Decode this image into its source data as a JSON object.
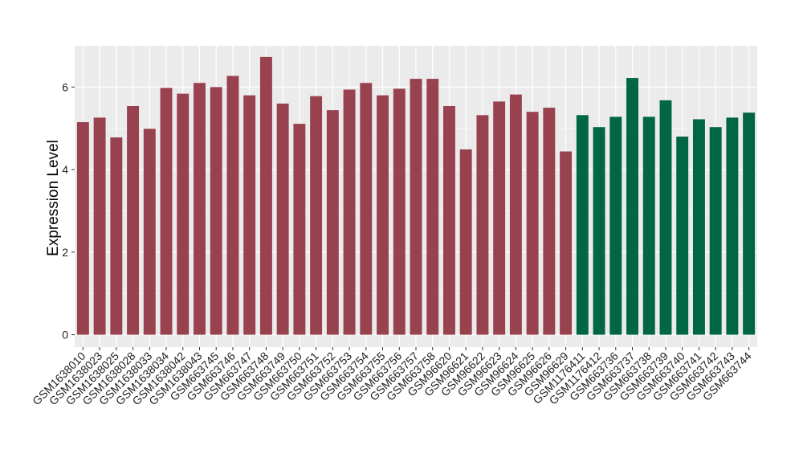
{
  "chart_data": {
    "type": "bar",
    "title": "",
    "xlabel": "",
    "ylabel": "Expression Level",
    "ylim": [
      -0.3,
      7.0
    ],
    "yticks": [
      0,
      2,
      4,
      6
    ],
    "grid": true,
    "legend": "none",
    "colors": {
      "group1": "#99424f",
      "group2": "#006644",
      "panel": "#ebebeb",
      "grid": "#ffffff"
    },
    "categories": [
      "GSM1638010",
      "GSM1638023",
      "GSM1638025",
      "GSM1638028",
      "GSM1638033",
      "GSM1638034",
      "GSM1638042",
      "GSM1638043",
      "GSM663745",
      "GSM663746",
      "GSM663747",
      "GSM663748",
      "GSM663749",
      "GSM663750",
      "GSM663751",
      "GSM663752",
      "GSM663753",
      "GSM663754",
      "GSM663755",
      "GSM663756",
      "GSM663757",
      "GSM663758",
      "GSM96620",
      "GSM96621",
      "GSM96622",
      "GSM96623",
      "GSM96624",
      "GSM96625",
      "GSM96626",
      "GSM96629",
      "GSM1176411",
      "GSM1176412",
      "GSM663736",
      "GSM663737",
      "GSM663738",
      "GSM663739",
      "GSM663740",
      "GSM663741",
      "GSM663742",
      "GSM663743",
      "GSM663744"
    ],
    "values": [
      5.15,
      5.26,
      4.78,
      5.54,
      4.99,
      5.98,
      5.84,
      6.1,
      6.0,
      6.27,
      5.8,
      6.73,
      5.6,
      5.11,
      5.78,
      5.44,
      5.94,
      6.1,
      5.8,
      5.96,
      6.2,
      6.2,
      5.54,
      4.49,
      5.32,
      5.65,
      5.82,
      5.4,
      5.5,
      4.44,
      5.32,
      5.03,
      5.28,
      6.22,
      5.28,
      5.68,
      4.8,
      5.22,
      5.03,
      5.26,
      5.38
    ],
    "groups": [
      1,
      1,
      1,
      1,
      1,
      1,
      1,
      1,
      1,
      1,
      1,
      1,
      1,
      1,
      1,
      1,
      1,
      1,
      1,
      1,
      1,
      1,
      1,
      1,
      1,
      1,
      1,
      1,
      1,
      1,
      2,
      2,
      2,
      2,
      2,
      2,
      2,
      2,
      2,
      2,
      2
    ]
  }
}
